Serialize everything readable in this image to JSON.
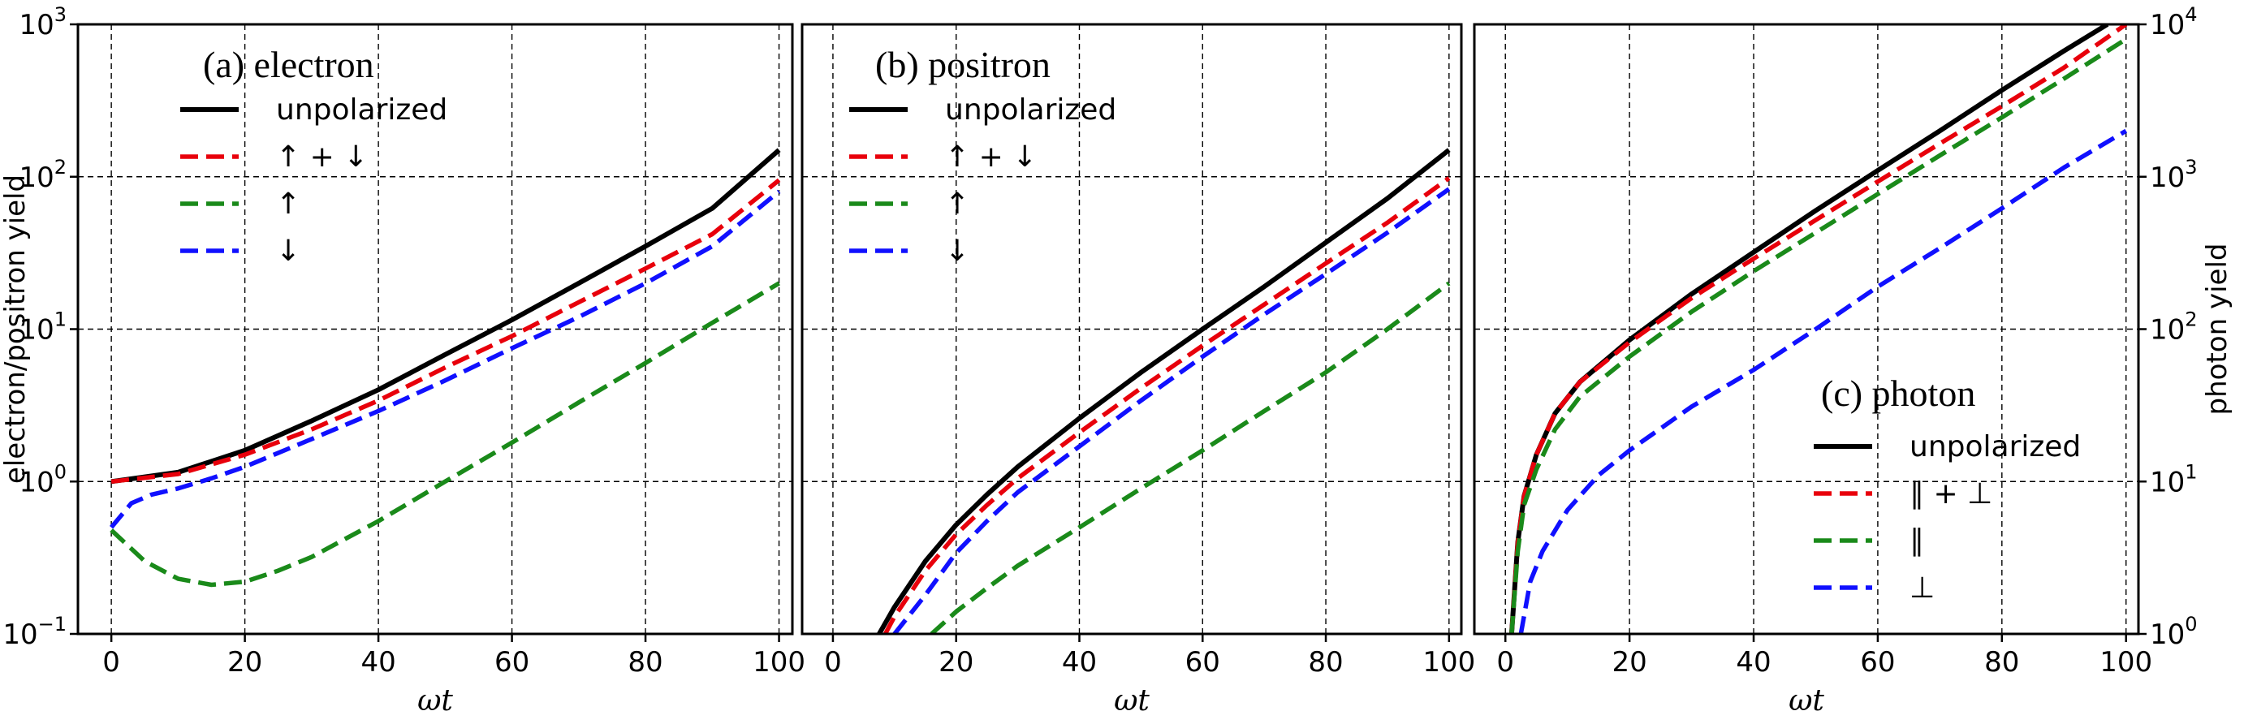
{
  "chart_data": [
    {
      "type": "line",
      "title": "(a) electron",
      "xlabel": "ωt",
      "ylabel": "electron/positron yield",
      "xlim": [
        -5,
        102
      ],
      "xticks": [
        0,
        20,
        40,
        60,
        80,
        100
      ],
      "ylim": [
        0.1,
        1000
      ],
      "yscale": "log",
      "yticks": [
        "10^-1",
        "10^0",
        "10^1",
        "10^2",
        "10^3"
      ],
      "grid": true,
      "legend_position": "top-left",
      "series": [
        {
          "name": "unpolarized",
          "color": "#000000",
          "style": "solid",
          "x": [
            0,
            10,
            20,
            30,
            40,
            50,
            60,
            70,
            80,
            90,
            100
          ],
          "y": [
            1.0,
            1.15,
            1.6,
            2.5,
            4.0,
            6.8,
            11.5,
            20,
            35,
            62,
            150
          ]
        },
        {
          "name": "↑ + ↓",
          "color": "#e8000b",
          "style": "dashed",
          "x": [
            0,
            10,
            20,
            30,
            40,
            50,
            60,
            70,
            80,
            90,
            100
          ],
          "y": [
            1.0,
            1.12,
            1.5,
            2.2,
            3.4,
            5.6,
            9.0,
            15,
            25,
            42,
            95
          ]
        },
        {
          "name": "↑",
          "color": "#1a8a1a",
          "style": "dashed",
          "x": [
            0,
            5,
            10,
            15,
            20,
            25,
            30,
            40,
            50,
            60,
            70,
            80,
            90,
            100
          ],
          "y": [
            0.48,
            0.3,
            0.23,
            0.21,
            0.22,
            0.26,
            0.32,
            0.55,
            1.0,
            1.8,
            3.3,
            6.0,
            11,
            20
          ]
        },
        {
          "name": "↓",
          "color": "#1010ff",
          "style": "dashed",
          "x": [
            0,
            3,
            6,
            10,
            15,
            20,
            30,
            40,
            50,
            60,
            70,
            80,
            90,
            100
          ],
          "y": [
            0.5,
            0.72,
            0.82,
            0.9,
            1.05,
            1.25,
            1.9,
            2.9,
            4.6,
            7.5,
            12,
            20,
            35,
            80
          ]
        }
      ]
    },
    {
      "type": "line",
      "title": "(b) positron",
      "xlabel": "ωt",
      "xlim": [
        -5,
        102
      ],
      "xticks": [
        0,
        20,
        40,
        60,
        80,
        100
      ],
      "ylim": [
        0.1,
        1000
      ],
      "yscale": "log",
      "grid": true,
      "legend_position": "top-left",
      "series": [
        {
          "name": "unpolarized",
          "color": "#000000",
          "style": "solid",
          "x": [
            7.5,
            10,
            15,
            20,
            25,
            30,
            40,
            50,
            60,
            70,
            80,
            90,
            100
          ],
          "y": [
            0.1,
            0.15,
            0.3,
            0.52,
            0.82,
            1.25,
            2.6,
            5.2,
            10,
            19,
            37,
            72,
            150
          ]
        },
        {
          "name": "↑ + ↓",
          "color": "#e8000b",
          "style": "dashed",
          "x": [
            8.5,
            10,
            15,
            20,
            25,
            30,
            40,
            50,
            60,
            70,
            80,
            90,
            100
          ],
          "y": [
            0.1,
            0.13,
            0.26,
            0.45,
            0.7,
            1.05,
            2.1,
            4.1,
            7.8,
            14.5,
            27,
            50,
            98
          ]
        },
        {
          "name": "↑",
          "color": "#1a8a1a",
          "style": "dashed",
          "x": [
            16,
            20,
            25,
            30,
            40,
            50,
            60,
            70,
            80,
            90,
            100
          ],
          "y": [
            0.1,
            0.14,
            0.2,
            0.28,
            0.5,
            0.9,
            1.6,
            2.9,
            5.2,
            10,
            20
          ]
        },
        {
          "name": "↓",
          "color": "#1010ff",
          "style": "dashed",
          "x": [
            10,
            15,
            20,
            25,
            30,
            40,
            50,
            60,
            70,
            80,
            90,
            100
          ],
          "y": [
            0.1,
            0.18,
            0.34,
            0.55,
            0.85,
            1.7,
            3.4,
            6.6,
            12.5,
            23,
            43,
            83
          ]
        }
      ]
    },
    {
      "type": "line",
      "title": "(c) photon",
      "xlabel": "ωt",
      "ylabel": "photon yield",
      "xlim": [
        -5,
        102
      ],
      "xticks": [
        0,
        20,
        40,
        60,
        80,
        100
      ],
      "ylim": [
        1,
        10000
      ],
      "yscale": "log",
      "yticks": [
        "10^0",
        "10^1",
        "10^2",
        "10^3",
        "10^4"
      ],
      "yaxis_side": "right",
      "grid": true,
      "legend_position": "bottom-right",
      "series": [
        {
          "name": "unpolarized",
          "color": "#000000",
          "style": "solid",
          "x": [
            1,
            2,
            3,
            5,
            8,
            12,
            20,
            30,
            40,
            50,
            60,
            70,
            80,
            90,
            97
          ],
          "y": [
            1,
            4,
            8,
            15,
            28,
            45,
            85,
            170,
            320,
            600,
            1100,
            2000,
            3700,
            6700,
            10000
          ]
        },
        {
          "name": "∥ + ⊥",
          "color": "#e8000b",
          "style": "dashed",
          "x": [
            1,
            2,
            3,
            5,
            8,
            12,
            20,
            30,
            40,
            50,
            60,
            70,
            80,
            90,
            100
          ],
          "y": [
            1,
            4,
            8,
            15,
            28,
            45,
            82,
            160,
            290,
            520,
            930,
            1650,
            2900,
            5200,
            10000
          ]
        },
        {
          "name": "∥",
          "color": "#1a8a1a",
          "style": "dashed",
          "x": [
            1,
            2,
            3,
            5,
            8,
            12,
            20,
            30,
            40,
            50,
            60,
            70,
            80,
            90,
            100
          ],
          "y": [
            1,
            3.5,
            7,
            12,
            22,
            36,
            66,
            130,
            240,
            430,
            770,
            1380,
            2450,
            4400,
            8000
          ]
        },
        {
          "name": "⊥",
          "color": "#1010ff",
          "style": "dashed",
          "x": [
            2.5,
            4,
            6,
            10,
            15,
            20,
            30,
            40,
            50,
            60,
            70,
            80,
            90,
            100
          ],
          "y": [
            1,
            2.2,
            3.5,
            6.5,
            11,
            16,
            31,
            54,
            100,
            190,
            340,
            620,
            1150,
            2000
          ]
        }
      ]
    }
  ]
}
